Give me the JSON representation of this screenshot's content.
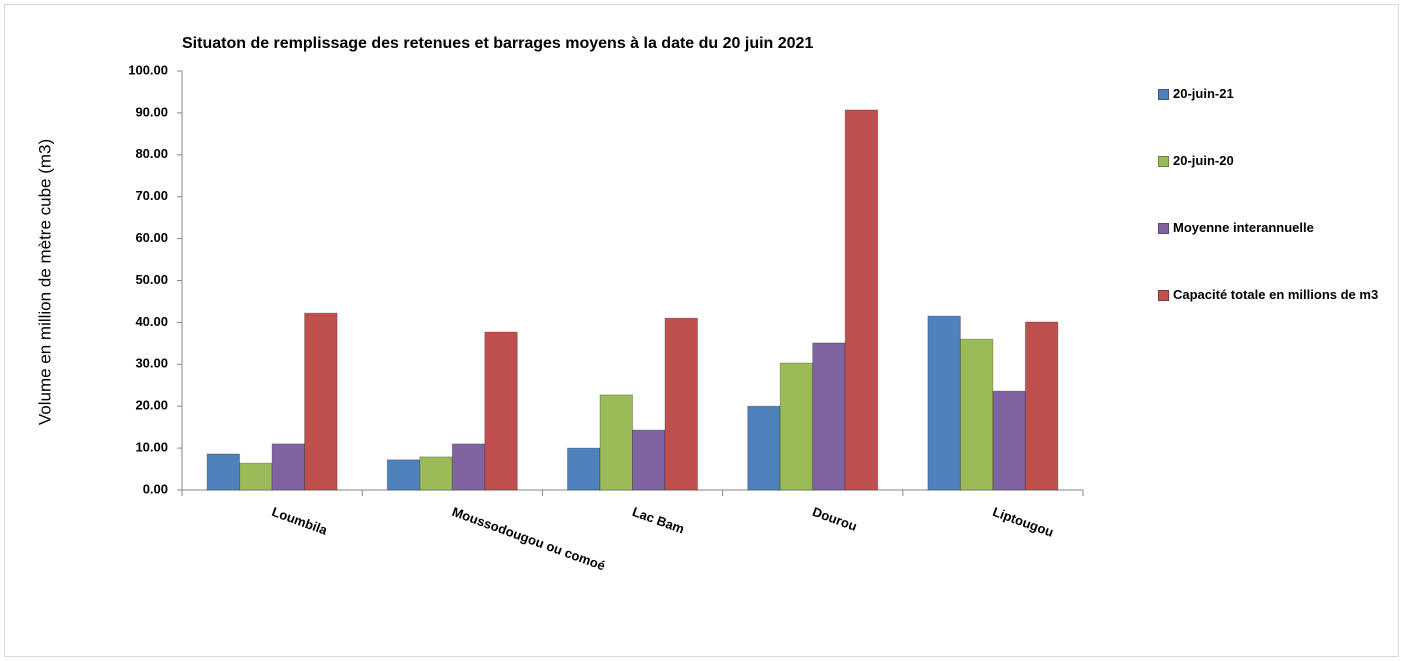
{
  "chart_data": {
    "type": "bar",
    "title": "Situaton de remplissage des retenues et barrages moyens à la date du 20 juin 2021",
    "y_label": "Volume en million de mètre cube (m3)",
    "categories": [
      "Loumbila",
      "Moussodougou ou comoé",
      "Lac Bam",
      "Dourou",
      "Liptougou"
    ],
    "series": [
      {
        "name": "20-juin-21",
        "color": "#4f81bd",
        "values": [
          8.6,
          7.2,
          10.0,
          20.0,
          41.5
        ]
      },
      {
        "name": "20-juin-20",
        "color": "#9bbb59",
        "values": [
          6.4,
          7.9,
          22.7,
          30.3,
          36.0
        ]
      },
      {
        "name": "Moyenne interannuelle",
        "color": "#8064a2",
        "values": [
          11.0,
          11.0,
          14.3,
          35.1,
          23.6
        ]
      },
      {
        "name": "Capacité totale en millions de m3",
        "color": "#c0504d",
        "values": [
          42.2,
          37.7,
          41.0,
          90.7,
          40.1
        ]
      }
    ],
    "ylim": [
      0,
      100
    ],
    "yticks": [
      {
        "value": 0,
        "label": "0.00"
      },
      {
        "value": 10,
        "label": "10.00"
      },
      {
        "value": 20,
        "label": "20.00"
      },
      {
        "value": 30,
        "label": "30.00"
      },
      {
        "value": 40,
        "label": "40.00"
      },
      {
        "value": 50,
        "label": "50.00"
      },
      {
        "value": 60,
        "label": "60.00"
      },
      {
        "value": 70,
        "label": "70.00"
      },
      {
        "value": 80,
        "label": "80.00"
      },
      {
        "value": 90,
        "label": "90.00"
      },
      {
        "value": 100,
        "label": "100.00"
      }
    ],
    "legend": "right"
  }
}
